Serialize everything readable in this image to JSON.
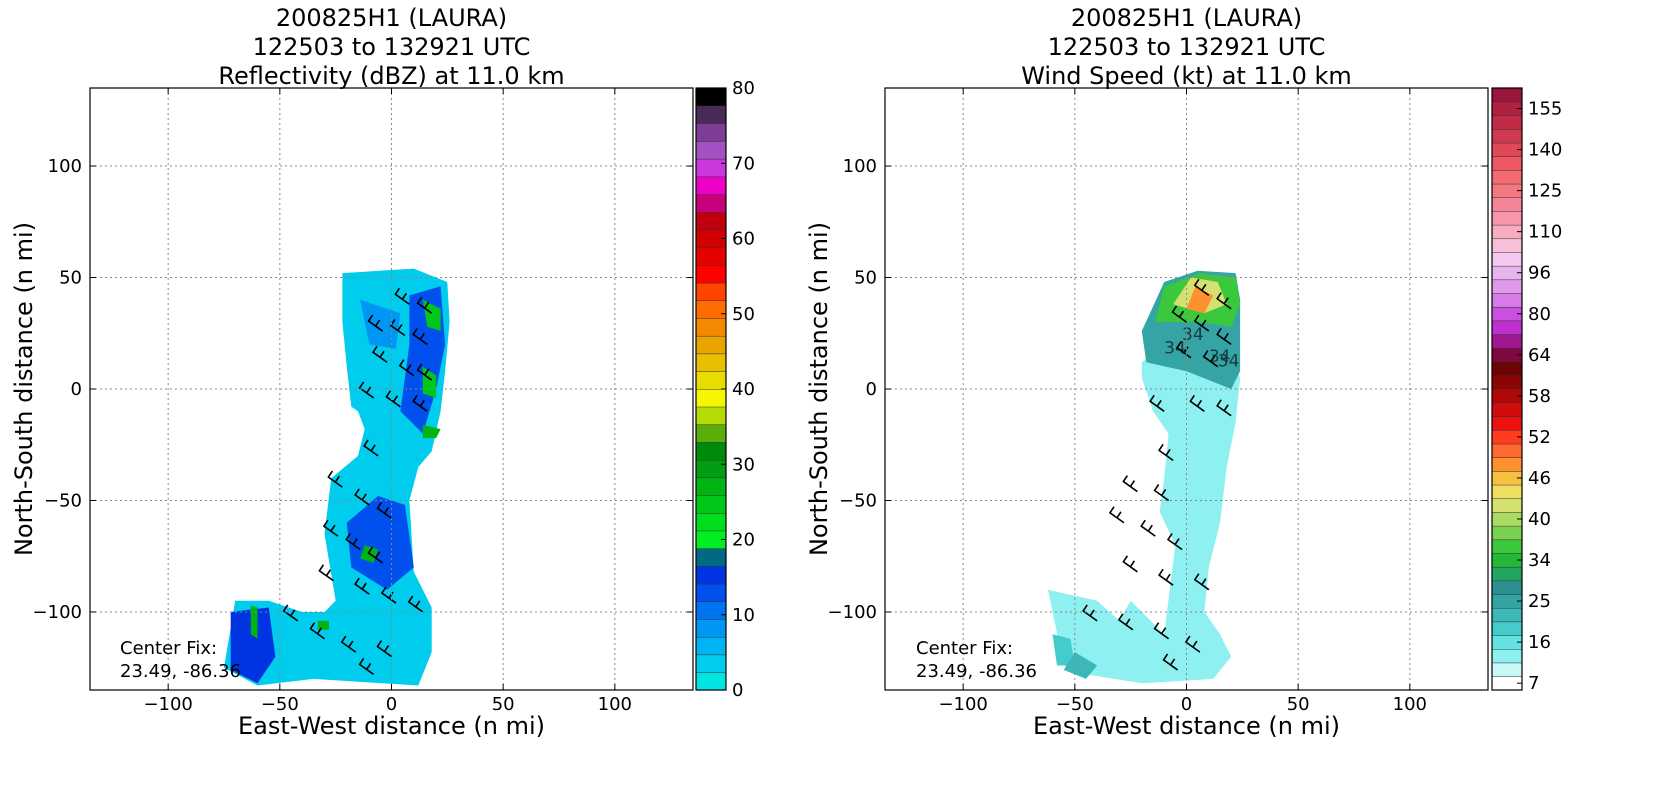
{
  "panels": [
    {
      "title_lines": [
        "200825H1 (LAURA)",
        "122503 to 132921 UTC",
        "Reflectivity (dBZ) at 11.0 km"
      ],
      "center_fix": [
        "Center Fix:",
        "23.49, -86.36"
      ]
    },
    {
      "title_lines": [
        "200825H1 (LAURA)",
        "122503 to 132921 UTC",
        "Wind Speed (kt) at 11.0 km"
      ],
      "center_fix": [
        "Center Fix:",
        "23.49, -86.36"
      ]
    }
  ],
  "chart_data": [
    {
      "type": "heatmap",
      "title": "200825H1 (LAURA) 122503 to 132921 UTC Reflectivity (dBZ) at 11.0 km",
      "xlabel": "East-West distance (n mi)",
      "ylabel": "North-South distance (n mi)",
      "xlim": [
        -135,
        135
      ],
      "ylim": [
        -135,
        135
      ],
      "xticks": [
        -100,
        -50,
        0,
        50,
        100
      ],
      "yticks": [
        -100,
        -50,
        0,
        50,
        100
      ],
      "grid": true,
      "colorbar": {
        "ticks": [
          0,
          10,
          20,
          30,
          40,
          50,
          60,
          70,
          80
        ],
        "levels": [
          0,
          2.5,
          5,
          7.5,
          10,
          12.5,
          15,
          17.5,
          20,
          22.5,
          25,
          27.5,
          30,
          32.5,
          35,
          37.5,
          40,
          42.5,
          45,
          47.5,
          50,
          52.5,
          55,
          57.5,
          60,
          62.5,
          65,
          67.5,
          70,
          72.5,
          75,
          77.5,
          80
        ],
        "colors": [
          "#00e4e4",
          "#00ccee",
          "#00b4f4",
          "#0096f4",
          "#0074f0",
          "#0050ee",
          "#0034e0",
          "#006a82",
          "#00ee22",
          "#00dd1c",
          "#00c818",
          "#00b414",
          "#009e10",
          "#008a0c",
          "#5aae0a",
          "#b4dc04",
          "#f6f600",
          "#e8dc00",
          "#e8c000",
          "#eaa400",
          "#f48800",
          "#ff6c00",
          "#ff4400",
          "#ff0000",
          "#e60000",
          "#d20000",
          "#c00010",
          "#c8007a",
          "#ee00c8",
          "#c838dc",
          "#a450c4",
          "#7c3e94",
          "#4a2a5a",
          "#000000"
        ]
      },
      "annotation": "Center Fix: 23.49, -86.36"
    },
    {
      "type": "heatmap",
      "title": "200825H1 (LAURA) 122503 to 132921 UTC Wind Speed (kt) at 11.0 km",
      "xlabel": "East-West distance (n mi)",
      "ylabel": "North-South distance (n mi)",
      "xlim": [
        -135,
        135
      ],
      "ylim": [
        -135,
        135
      ],
      "xticks": [
        -100,
        -50,
        0,
        50,
        100
      ],
      "yticks": [
        -100,
        -50,
        0,
        50,
        100
      ],
      "grid": true,
      "contour_labels": [
        "34",
        "34",
        "34",
        "34"
      ],
      "colorbar": {
        "ticks": [
          7,
          16,
          25,
          34,
          40,
          46,
          52,
          58,
          64,
          80,
          96,
          110,
          125,
          140,
          155
        ],
        "tick_labels": [
          "7",
          "16",
          "25",
          "34",
          "40",
          "46",
          "52",
          "58",
          "64",
          "80",
          "96",
          "110",
          "125",
          "140",
          "155"
        ],
        "colors": [
          "#ffffff",
          "#c8f8f8",
          "#8ef0f0",
          "#64e2e2",
          "#44cccc",
          "#3cb8b8",
          "#34a4a4",
          "#2c9090",
          "#20a860",
          "#24b838",
          "#3cc83c",
          "#7cd050",
          "#aadc64",
          "#d4e070",
          "#f0e060",
          "#f8c040",
          "#ff9030",
          "#ff6830",
          "#ff3c20",
          "#ee1010",
          "#d00c0c",
          "#b00808",
          "#8c0404",
          "#6c0404",
          "#800840",
          "#a01890",
          "#c030d0",
          "#cc50e0",
          "#d87ae8",
          "#e09aec",
          "#e8b4ee",
          "#f2c8ee",
          "#f6c0d8",
          "#f8acc0",
          "#f895a8",
          "#f4849a",
          "#f47880",
          "#f46a70",
          "#ee5862",
          "#e04858",
          "#d03a50",
          "#c02c48",
          "#b02040",
          "#98163c"
        ]
      },
      "annotation": "Center Fix: 23.49, -86.36"
    }
  ]
}
